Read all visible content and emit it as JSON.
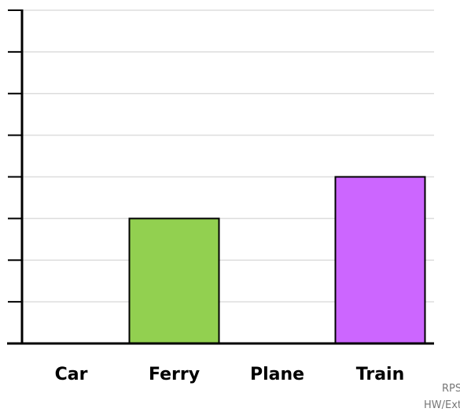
{
  "chart_data": {
    "type": "bar",
    "title": "",
    "xlabel": "",
    "ylabel": "",
    "categories": [
      "Car",
      "Ferry",
      "Plane",
      "Train"
    ],
    "values": [
      0,
      3,
      0,
      4
    ],
    "bar_colors": [
      "#92d050",
      "#92d050",
      "#92d050",
      "#cc66ff"
    ],
    "ylim": [
      0,
      8
    ],
    "y_tick_step": 1,
    "grid": true,
    "legend": "none"
  },
  "watermark": {
    "line1": "RPS",
    "line2": "HW/Ext"
  }
}
